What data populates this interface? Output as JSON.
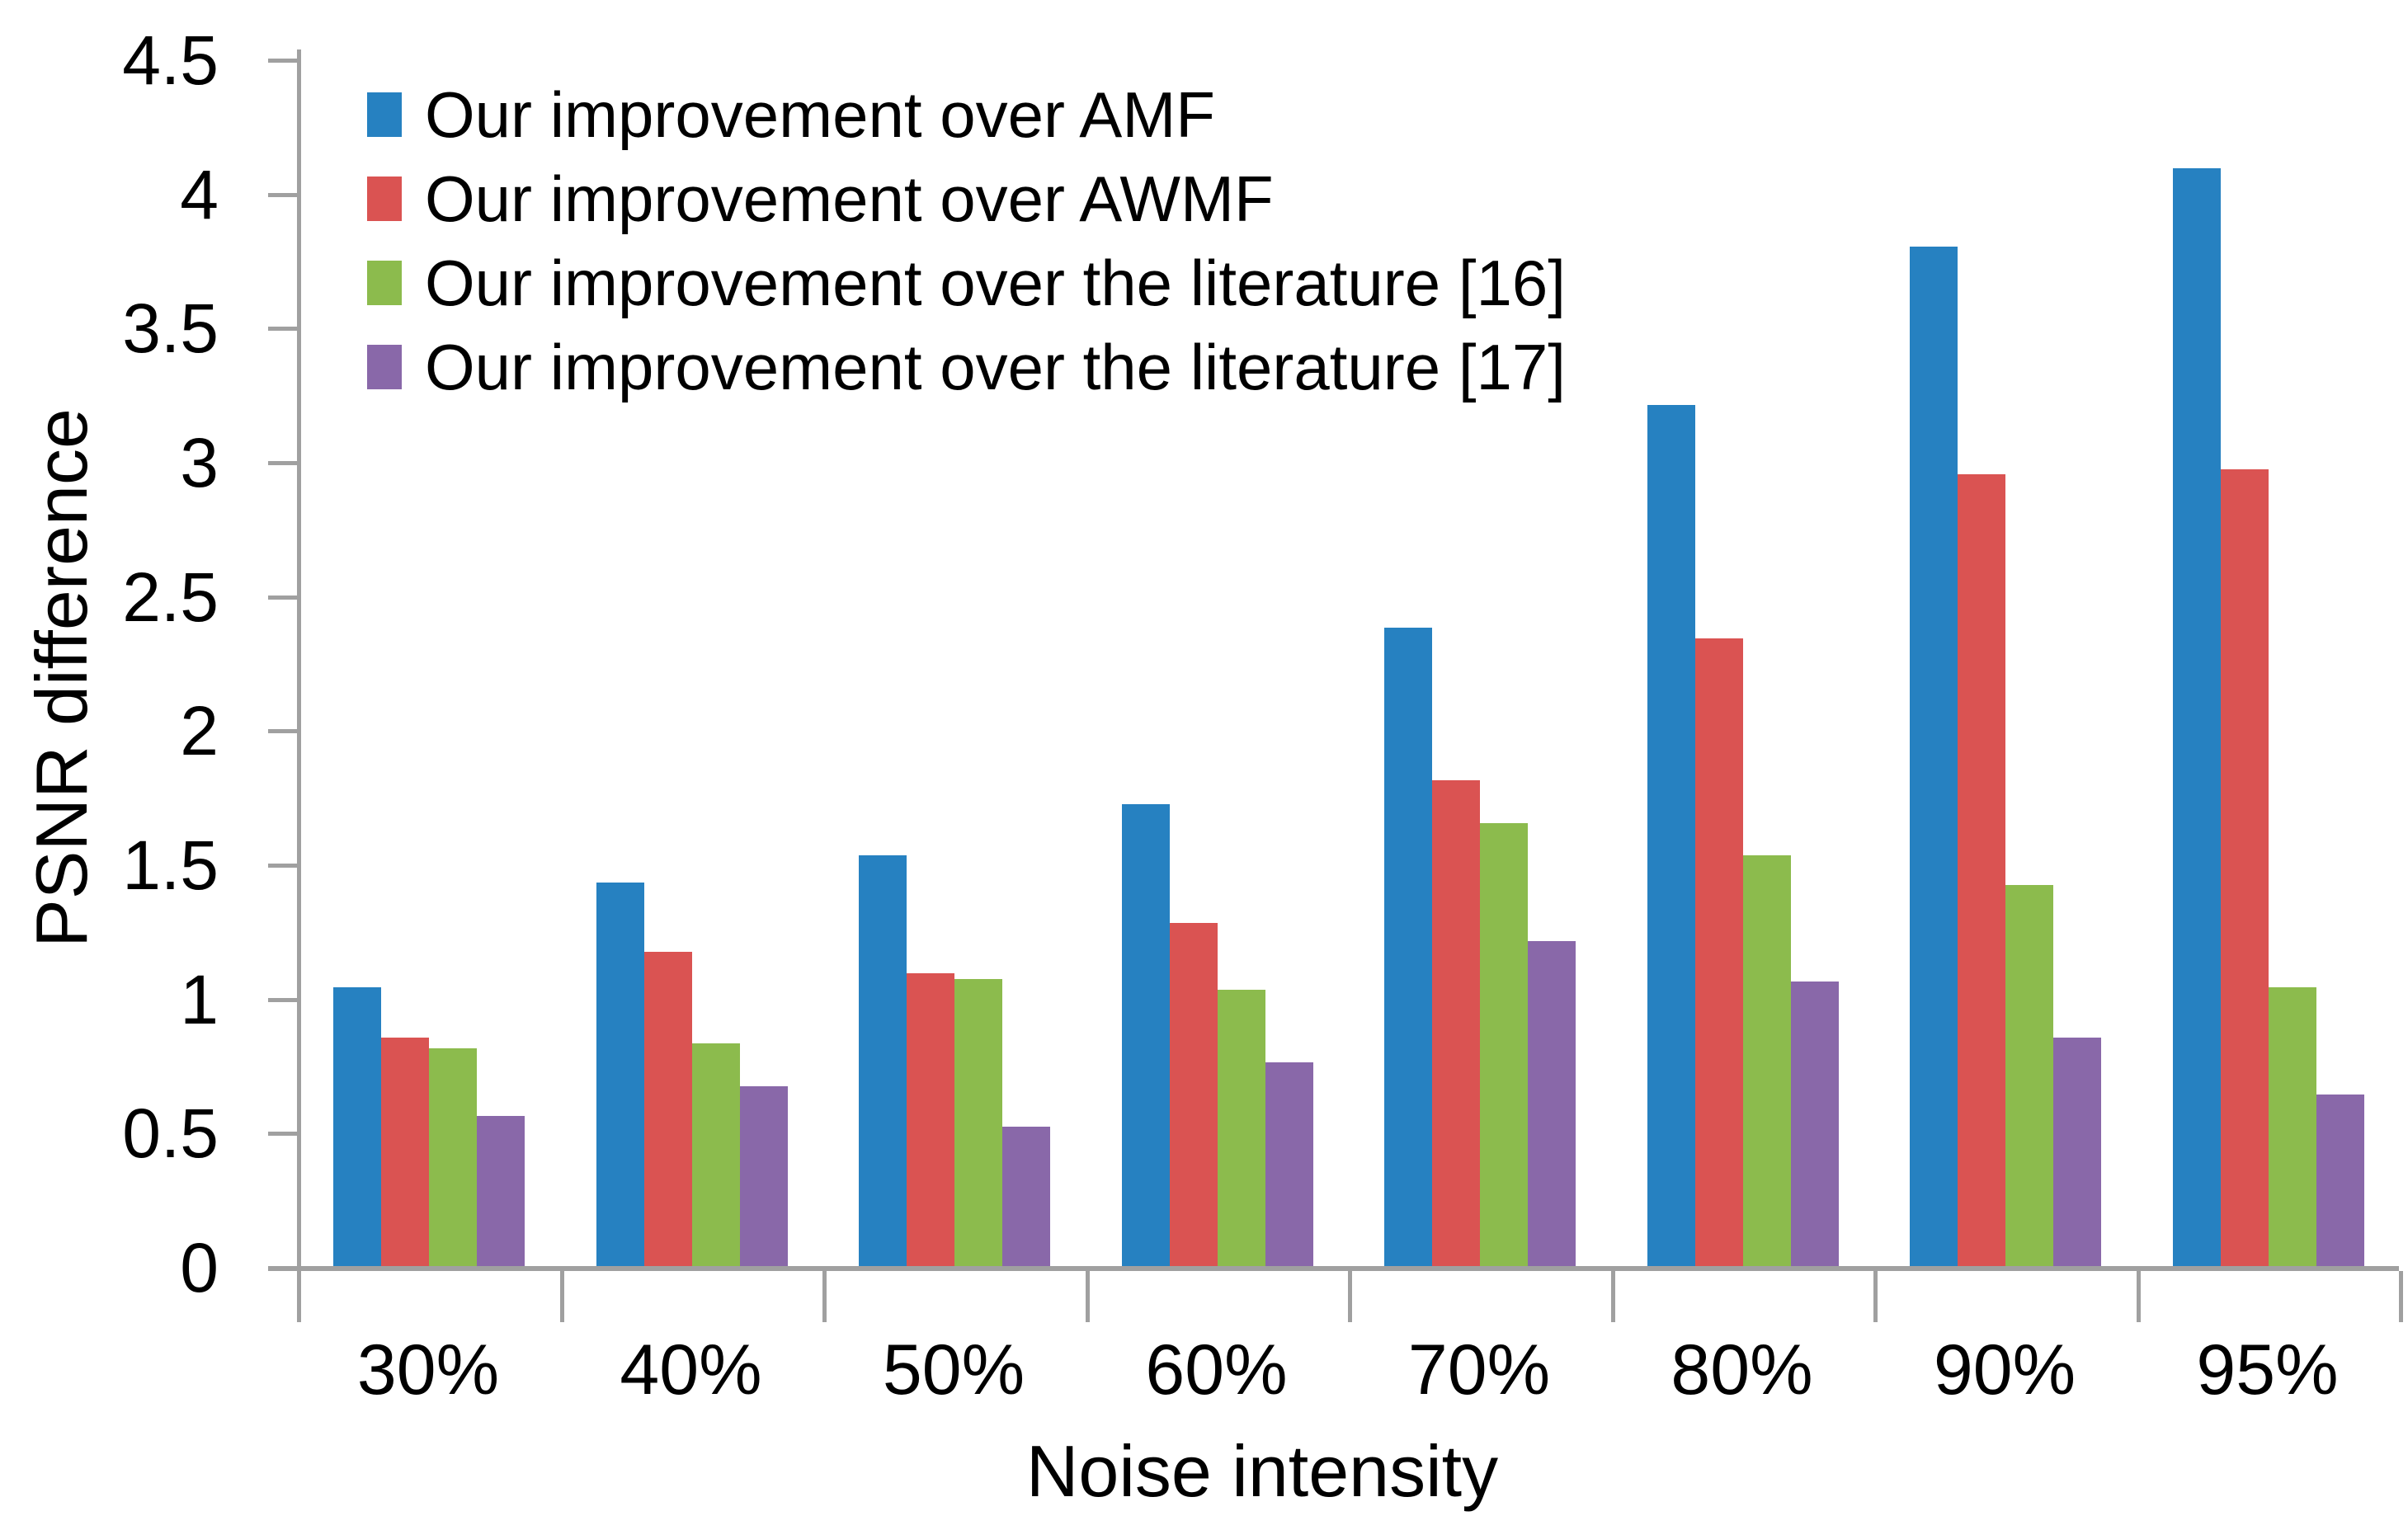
{
  "chart_data": {
    "type": "bar",
    "title": "",
    "xlabel": "Noise intensity",
    "ylabel": "PSNR difference",
    "categories": [
      "30%",
      "40%",
      "50%",
      "60%",
      "70%",
      "80%",
      "90%",
      "95%"
    ],
    "series": [
      {
        "name": "Our improvement over AMF",
        "color": "#2681c1",
        "values": [
          1.04,
          1.43,
          1.53,
          1.72,
          2.38,
          3.21,
          3.8,
          4.09
        ]
      },
      {
        "name": "Our improvement over AWMF",
        "color": "#da5352",
        "values": [
          0.85,
          1.17,
          1.09,
          1.28,
          1.81,
          2.34,
          2.95,
          2.97
        ]
      },
      {
        "name": "Our improvement over the literature [16]",
        "color": "#8cbb4d",
        "values": [
          0.81,
          0.83,
          1.07,
          1.03,
          1.65,
          1.53,
          1.42,
          1.04
        ]
      },
      {
        "name": "Our improvement over the literature [17]",
        "color": "#8968a9",
        "values": [
          0.56,
          0.67,
          0.52,
          0.76,
          1.21,
          1.06,
          0.85,
          0.64
        ]
      }
    ],
    "y_ticks": [
      0,
      0.5,
      1,
      1.5,
      2,
      2.5,
      3,
      3.5,
      4,
      4.5
    ],
    "ylim": [
      0,
      4.5
    ],
    "grid": false,
    "legend_position": "top-left",
    "axis_color": "#a0a0a0",
    "text_color": "#000000"
  }
}
